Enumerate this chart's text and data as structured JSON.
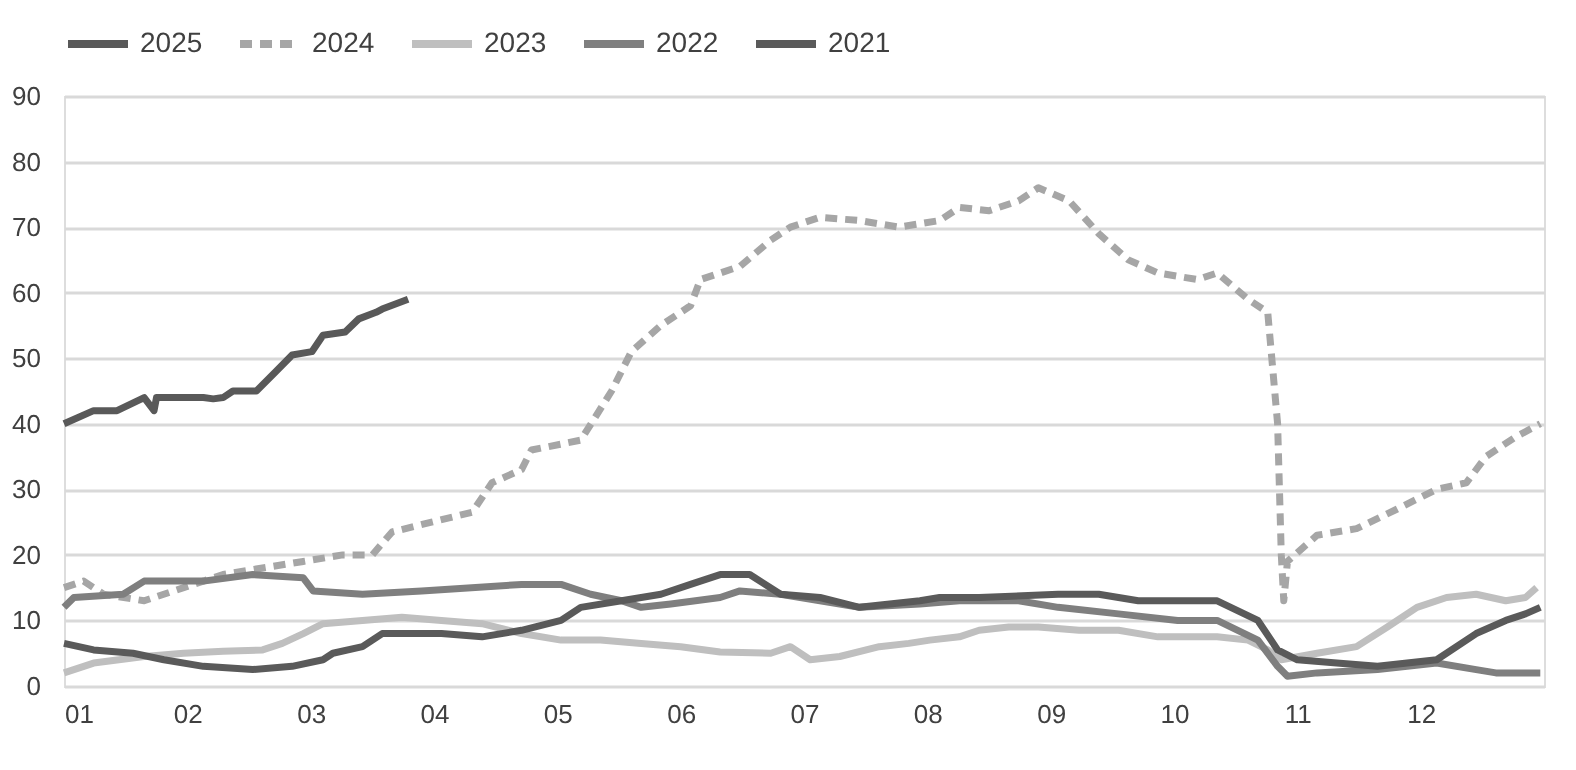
{
  "chart_data": {
    "type": "line",
    "xlim": [
      1,
      13
    ],
    "ylim": [
      0,
      90
    ],
    "xticks": [
      {
        "value": 1,
        "label": "01"
      },
      {
        "value": 2,
        "label": "02"
      },
      {
        "value": 3,
        "label": "03"
      },
      {
        "value": 4,
        "label": "04"
      },
      {
        "value": 5,
        "label": "05"
      },
      {
        "value": 6,
        "label": "06"
      },
      {
        "value": 7,
        "label": "07"
      },
      {
        "value": 8,
        "label": "08"
      },
      {
        "value": 9,
        "label": "09"
      },
      {
        "value": 10,
        "label": "10"
      },
      {
        "value": 11,
        "label": "11"
      },
      {
        "value": 12,
        "label": "12"
      }
    ],
    "yticks": [
      0,
      10,
      20,
      30,
      40,
      50,
      60,
      70,
      80,
      90
    ],
    "grid": "y",
    "legend": "top",
    "marker": "none",
    "series": [
      {
        "name": "2025",
        "color": "#595959",
        "line_style": "solid",
        "x": [
          1.0,
          1.24,
          1.43,
          1.65,
          1.73,
          1.75,
          2.13,
          2.21,
          2.29,
          2.37,
          2.56,
          2.72,
          2.85,
          3.01,
          3.1,
          3.28,
          3.39,
          3.53,
          3.58,
          3.79
        ],
        "values": [
          40,
          42,
          42,
          44,
          42,
          44,
          44,
          43.8,
          44,
          45,
          45,
          48,
          50.5,
          51,
          53.5,
          54,
          56,
          57,
          57.5,
          59
        ]
      },
      {
        "name": "2024",
        "color": "#a6a6a6",
        "line_style": "dashed",
        "x": [
          1.0,
          1.16,
          1.32,
          1.65,
          1.97,
          2.29,
          2.61,
          2.94,
          3.26,
          3.5,
          3.66,
          3.98,
          4.31,
          4.47,
          4.71,
          4.79,
          5.19,
          5.44,
          5.6,
          5.84,
          6.08,
          6.16,
          6.48,
          6.73,
          6.89,
          7.13,
          7.45,
          7.77,
          8.1,
          8.26,
          8.5,
          8.74,
          8.9,
          9.15,
          9.39,
          9.63,
          9.87,
          10.19,
          10.35,
          10.6,
          10.76,
          10.84,
          10.87,
          10.89,
          10.92,
          11.16,
          11.48,
          11.81,
          12.13,
          12.37,
          12.53,
          12.77,
          12.97
        ],
        "values": [
          15,
          16,
          14,
          13,
          15,
          17,
          18,
          19,
          20,
          20,
          23.5,
          25,
          26.5,
          31,
          33,
          36,
          37.5,
          45,
          51,
          55,
          58,
          62,
          64,
          68,
          70,
          71.5,
          71,
          70,
          71,
          73,
          72.5,
          74,
          76,
          74,
          69,
          65,
          63,
          62,
          63,
          59,
          57,
          40,
          20,
          13,
          19,
          23,
          24,
          27,
          30,
          31,
          35,
          38,
          40
        ]
      },
      {
        "name": "2023",
        "color": "#bfbfbf",
        "line_style": "solid",
        "x": [
          1.0,
          1.24,
          1.65,
          1.97,
          2.29,
          2.61,
          2.77,
          2.94,
          3.1,
          3.42,
          3.74,
          4.06,
          4.39,
          4.71,
          5.03,
          5.35,
          5.68,
          6.0,
          6.32,
          6.73,
          6.89,
          7.05,
          7.29,
          7.61,
          7.85,
          8.02,
          8.26,
          8.42,
          8.66,
          8.9,
          9.23,
          9.55,
          9.87,
          10.35,
          10.6,
          10.76,
          10.87,
          11.16,
          11.48,
          11.73,
          11.97,
          12.21,
          12.45,
          12.69,
          12.85,
          12.94
        ],
        "values": [
          2,
          3.5,
          4.5,
          5,
          5.3,
          5.5,
          6.5,
          8,
          9.5,
          10,
          10.5,
          10,
          9.5,
          8,
          7,
          7,
          6.5,
          6,
          5.2,
          5,
          6,
          4,
          4.5,
          6,
          6.5,
          7,
          7.5,
          8.5,
          9,
          9,
          8.5,
          8.5,
          7.5,
          7.5,
          7,
          5.5,
          4,
          5,
          6,
          9,
          12,
          13.5,
          14,
          13,
          13.5,
          15
        ]
      },
      {
        "name": "2022",
        "color": "#7f7f7f",
        "line_style": "solid",
        "x": [
          1.0,
          1.08,
          1.48,
          1.65,
          2.13,
          2.53,
          2.94,
          3.02,
          3.42,
          3.9,
          4.71,
          5.03,
          5.27,
          5.52,
          5.68,
          5.92,
          6.32,
          6.48,
          6.81,
          7.45,
          7.94,
          8.26,
          8.74,
          9.06,
          9.55,
          10.03,
          10.35,
          10.68,
          10.84,
          10.92,
          11.16,
          11.65,
          12.13,
          12.45,
          12.61,
          12.97
        ],
        "values": [
          12,
          13.5,
          14,
          16,
          16,
          17,
          16.5,
          14.5,
          14,
          14.5,
          15.5,
          15.5,
          14,
          13,
          12,
          12.5,
          13.5,
          14.5,
          14,
          12,
          12.5,
          13,
          13,
          12,
          11,
          10,
          10,
          7,
          3,
          1.5,
          2,
          2.5,
          3.5,
          2.5,
          2,
          2
        ]
      },
      {
        "name": "2021",
        "color": "#5a5a5a",
        "line_style": "solid",
        "x": [
          1.0,
          1.24,
          1.56,
          1.81,
          2.13,
          2.53,
          2.85,
          3.1,
          3.18,
          3.42,
          3.58,
          4.06,
          4.39,
          4.71,
          5.03,
          5.19,
          5.52,
          5.84,
          6.08,
          6.32,
          6.56,
          6.81,
          7.13,
          7.45,
          7.94,
          8.1,
          8.42,
          9.06,
          9.39,
          9.71,
          10.35,
          10.68,
          10.84,
          11.0,
          11.32,
          11.65,
          12.13,
          12.45,
          12.69,
          12.85,
          12.97
        ],
        "values": [
          6.5,
          5.5,
          5,
          4,
          3,
          2.5,
          3,
          4,
          5,
          6,
          8,
          8,
          7.5,
          8.5,
          10,
          12,
          13,
          14,
          15.5,
          17,
          17,
          14,
          13.5,
          12,
          13,
          13.5,
          13.5,
          14,
          14,
          13,
          13,
          10,
          5.5,
          4,
          3.5,
          3,
          4,
          8,
          10,
          11,
          12
        ]
      }
    ]
  }
}
